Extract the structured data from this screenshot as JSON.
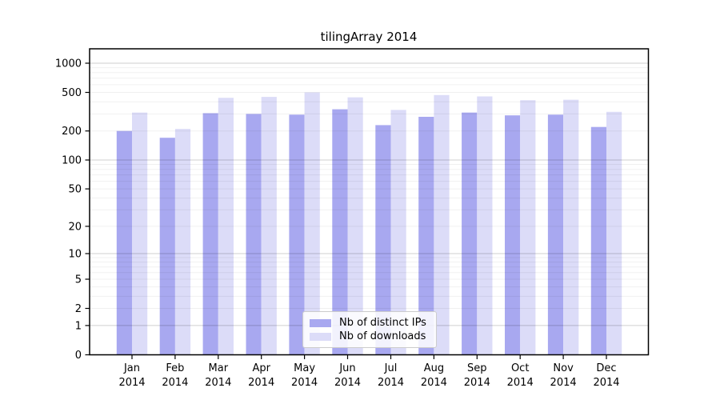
{
  "title": "tilingArray 2014",
  "chart_data": {
    "type": "bar",
    "title": "tilingArray 2014",
    "categories": [
      "Jan 2014",
      "Feb 2014",
      "Mar 2014",
      "Apr 2014",
      "May 2014",
      "Jun 2014",
      "Jul 2014",
      "Aug 2014",
      "Sep 2014",
      "Oct 2014",
      "Nov 2014",
      "Dec 2014"
    ],
    "series": [
      {
        "name": "Nb of distinct IPs",
        "color": "#a8a8f0",
        "values": [
          200,
          170,
          305,
          300,
          295,
          335,
          230,
          280,
          310,
          290,
          295,
          220
        ]
      },
      {
        "name": "Nb of downloads",
        "color": "#dcdcf8",
        "values": [
          310,
          210,
          440,
          450,
          500,
          445,
          330,
          470,
          455,
          415,
          420,
          315
        ]
      }
    ],
    "xlabel": "",
    "ylabel": "",
    "yscale": "log1p",
    "ylim": [
      0,
      1400
    ],
    "yticks": [
      0,
      1,
      2,
      5,
      10,
      20,
      50,
      100,
      200,
      500,
      1000
    ],
    "grid": true,
    "grid_major_color": "#d2d2d2",
    "grid_minor_color": "#f0f0f0",
    "axis_color": "#000000",
    "legend_position": "lower center inside plot"
  }
}
